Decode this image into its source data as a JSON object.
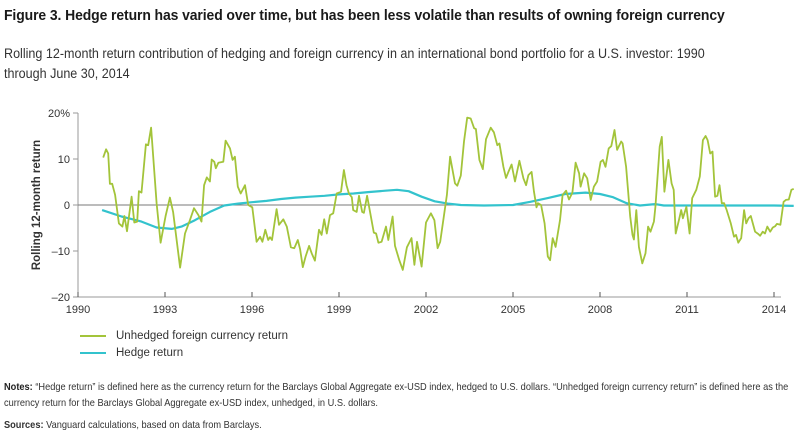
{
  "figure": {
    "title": "Figure 3. Hedge return has varied over time, but has been less volatile than results of owning foreign currency",
    "subtitle": "Rolling 12-month return contribution of hedging and foreign currency in an international bond portfolio for a U.S. investor: 1990 through June 30, 2014",
    "notes_label": "Notes:",
    "notes_text": " “Hedge return” is defined here as the currency return for the Barclays Global Aggregate ex-USD index, hedged to U.S. dollars. “Unhedged foreign currency return” is defined here as the currency return for the Barclays Global Aggregate ex-USD index, unhedged, in U.S. dollars.",
    "sources_label": "Sources:",
    "sources_text": " Vanguard calculations, based on data from Barclays."
  },
  "colors": {
    "unhedged": "#a3c43a",
    "hedge": "#33c3cd",
    "axis": "#9a9a9a",
    "zero_line": "#7a7a7a"
  },
  "chart_data": {
    "type": "line",
    "title": "Figure 3. Hedge return has varied over time, but has been less volatile than results of owning foreign currency",
    "xlabel": "",
    "ylabel": "Rolling 12-month return",
    "xlim": [
      1990,
      2014.2
    ],
    "ylim": [
      -20,
      20
    ],
    "x_ticks": [
      1990,
      1993,
      1996,
      1999,
      2002,
      2005,
      2008,
      2011,
      2014
    ],
    "x_tick_labels": [
      "1990",
      "1993",
      "1996",
      "1999",
      "2002",
      "2005",
      "2008",
      "2011",
      "2014"
    ],
    "y_ticks": [
      20,
      10,
      0,
      -10,
      -20
    ],
    "y_tick_labels": [
      "20%",
      "10",
      "0",
      "–10",
      "–20"
    ],
    "grid": false,
    "zero_line": true,
    "legend_position": "bottom-left",
    "series": [
      {
        "name": "Unhedged foreign currency return",
        "color_key": "unhedged",
        "points": [
          [
            1990.87,
            10.3
          ],
          [
            1990.97,
            12.1
          ],
          [
            1991.04,
            11.2
          ],
          [
            1991.1,
            4.6
          ],
          [
            1991.18,
            4.6
          ],
          [
            1991.28,
            2.2
          ],
          [
            1991.41,
            -4.0
          ],
          [
            1991.53,
            -4.7
          ],
          [
            1991.6,
            -2.4
          ],
          [
            1991.69,
            -5.7
          ],
          [
            1991.85,
            1.8
          ],
          [
            1991.94,
            -3.8
          ],
          [
            1992.04,
            -3.6
          ],
          [
            1992.1,
            3.0
          ],
          [
            1992.19,
            2.7
          ],
          [
            1992.34,
            13.2
          ],
          [
            1992.42,
            13.0
          ],
          [
            1992.52,
            16.8
          ],
          [
            1992.71,
            0.4
          ],
          [
            1992.85,
            -8.2
          ],
          [
            1993.02,
            -2.4
          ],
          [
            1993.17,
            1.6
          ],
          [
            1993.28,
            -1.5
          ],
          [
            1993.52,
            -13.6
          ],
          [
            1993.69,
            -6.2
          ],
          [
            1993.86,
            -3.3
          ],
          [
            1994.0,
            -0.7
          ],
          [
            1994.15,
            -2.2
          ],
          [
            1994.26,
            -3.6
          ],
          [
            1994.35,
            4.3
          ],
          [
            1994.44,
            6.0
          ],
          [
            1994.55,
            5.1
          ],
          [
            1994.61,
            9.9
          ],
          [
            1994.7,
            9.4
          ],
          [
            1994.75,
            8.0
          ],
          [
            1994.84,
            9.2
          ],
          [
            1995.01,
            9.4
          ],
          [
            1995.09,
            14.0
          ],
          [
            1995.24,
            12.3
          ],
          [
            1995.33,
            9.8
          ],
          [
            1995.41,
            10.5
          ],
          [
            1995.51,
            4.0
          ],
          [
            1995.61,
            2.5
          ],
          [
            1995.76,
            4.3
          ],
          [
            1995.87,
            0.0
          ],
          [
            1996.01,
            -0.5
          ],
          [
            1996.16,
            -8.0
          ],
          [
            1996.28,
            -6.9
          ],
          [
            1996.36,
            -8.0
          ],
          [
            1996.46,
            -5.4
          ],
          [
            1996.56,
            -7.6
          ],
          [
            1996.62,
            -7.0
          ],
          [
            1996.69,
            -7.6
          ],
          [
            1996.85,
            -0.9
          ],
          [
            1996.93,
            -4.3
          ],
          [
            1997.08,
            -3.1
          ],
          [
            1997.2,
            -4.7
          ],
          [
            1997.34,
            -9.2
          ],
          [
            1997.46,
            -9.4
          ],
          [
            1997.58,
            -7.6
          ],
          [
            1997.66,
            -9.6
          ],
          [
            1997.75,
            -13.5
          ],
          [
            1997.85,
            -11.2
          ],
          [
            1997.97,
            -8.9
          ],
          [
            1998.06,
            -10.5
          ],
          [
            1998.17,
            -12.1
          ],
          [
            1998.31,
            -5.4
          ],
          [
            1998.4,
            -6.5
          ],
          [
            1998.49,
            -3.1
          ],
          [
            1998.58,
            -6.2
          ],
          [
            1998.69,
            -2.2
          ],
          [
            1998.8,
            -1.8
          ],
          [
            1998.92,
            2.5
          ],
          [
            1999.0,
            2.7
          ],
          [
            1999.07,
            2.9
          ],
          [
            1999.17,
            7.6
          ],
          [
            1999.26,
            4.3
          ],
          [
            1999.34,
            2.5
          ],
          [
            1999.44,
            1.7
          ],
          [
            1999.49,
            -1.1
          ],
          [
            1999.61,
            -1.5
          ],
          [
            1999.69,
            2.0
          ],
          [
            1999.8,
            -1.5
          ],
          [
            1999.86,
            -1.7
          ],
          [
            1999.97,
            2.0
          ],
          [
            2000.08,
            -1.8
          ],
          [
            2000.2,
            -6.0
          ],
          [
            2000.28,
            -6.2
          ],
          [
            2000.36,
            -8.2
          ],
          [
            2000.47,
            -8.0
          ],
          [
            2000.62,
            -4.7
          ],
          [
            2000.7,
            -7.6
          ],
          [
            2000.85,
            -2.5
          ],
          [
            2000.93,
            -8.9
          ],
          [
            2001.08,
            -12.0
          ],
          [
            2001.2,
            -14.1
          ],
          [
            2001.34,
            -9.2
          ],
          [
            2001.5,
            -7.2
          ],
          [
            2001.6,
            -13.0
          ],
          [
            2001.69,
            -8.0
          ],
          [
            2001.85,
            -13.4
          ],
          [
            2002.0,
            -3.8
          ],
          [
            2002.17,
            -1.8
          ],
          [
            2002.29,
            -3.3
          ],
          [
            2002.4,
            -9.4
          ],
          [
            2002.49,
            -8.0
          ],
          [
            2002.61,
            -2.7
          ],
          [
            2002.72,
            2.2
          ],
          [
            2002.83,
            10.5
          ],
          [
            2003.0,
            4.7
          ],
          [
            2003.08,
            4.2
          ],
          [
            2003.2,
            6.4
          ],
          [
            2003.31,
            13.8
          ],
          [
            2003.42,
            19.0
          ],
          [
            2003.54,
            18.8
          ],
          [
            2003.66,
            16.7
          ],
          [
            2003.72,
            16.5
          ],
          [
            2003.84,
            9.8
          ],
          [
            2003.96,
            7.8
          ],
          [
            2004.07,
            14.3
          ],
          [
            2004.23,
            16.8
          ],
          [
            2004.34,
            15.8
          ],
          [
            2004.46,
            13.0
          ],
          [
            2004.53,
            13.4
          ],
          [
            2004.67,
            8.3
          ],
          [
            2004.76,
            5.9
          ],
          [
            2004.84,
            7.2
          ],
          [
            2004.95,
            8.8
          ],
          [
            2005.07,
            5.1
          ],
          [
            2005.22,
            9.6
          ],
          [
            2005.36,
            5.8
          ],
          [
            2005.45,
            4.3
          ],
          [
            2005.53,
            6.5
          ],
          [
            2005.64,
            7.2
          ],
          [
            2005.72,
            3.0
          ],
          [
            2005.81,
            -0.5
          ],
          [
            2005.86,
            0.4
          ],
          [
            2005.97,
            0.0
          ],
          [
            2006.09,
            -4.0
          ],
          [
            2006.2,
            -11.2
          ],
          [
            2006.28,
            -12.0
          ],
          [
            2006.37,
            -7.2
          ],
          [
            2006.47,
            -9.1
          ],
          [
            2006.62,
            -3.3
          ],
          [
            2006.71,
            2.2
          ],
          [
            2006.83,
            3.1
          ],
          [
            2006.93,
            1.2
          ],
          [
            2007.05,
            2.7
          ],
          [
            2007.16,
            9.2
          ],
          [
            2007.28,
            6.9
          ],
          [
            2007.33,
            4.0
          ],
          [
            2007.45,
            6.9
          ],
          [
            2007.56,
            5.8
          ],
          [
            2007.68,
            1.1
          ],
          [
            2007.79,
            4.0
          ],
          [
            2007.9,
            5.1
          ],
          [
            2008.02,
            9.4
          ],
          [
            2008.1,
            9.8
          ],
          [
            2008.19,
            8.3
          ],
          [
            2008.3,
            12.3
          ],
          [
            2008.39,
            12.8
          ],
          [
            2008.5,
            16.3
          ],
          [
            2008.59,
            12.0
          ],
          [
            2008.73,
            13.8
          ],
          [
            2008.78,
            13.4
          ],
          [
            2008.9,
            8.3
          ],
          [
            2009.04,
            -2.5
          ],
          [
            2009.12,
            -6.5
          ],
          [
            2009.17,
            -7.5
          ],
          [
            2009.25,
            -1.1
          ],
          [
            2009.34,
            -9.1
          ],
          [
            2009.46,
            -12.7
          ],
          [
            2009.57,
            -10.5
          ],
          [
            2009.66,
            -4.7
          ],
          [
            2009.74,
            -5.8
          ],
          [
            2009.86,
            -3.6
          ],
          [
            2009.91,
            -0.4
          ],
          [
            2010.06,
            12.7
          ],
          [
            2010.13,
            14.8
          ],
          [
            2010.22,
            2.9
          ],
          [
            2010.36,
            9.8
          ],
          [
            2010.47,
            4.7
          ],
          [
            2010.54,
            3.3
          ],
          [
            2010.61,
            -6.2
          ],
          [
            2010.72,
            -3.3
          ],
          [
            2010.8,
            -1.1
          ],
          [
            2010.86,
            -2.9
          ],
          [
            2010.98,
            -0.4
          ],
          [
            2011.09,
            -6.2
          ],
          [
            2011.18,
            1.5
          ],
          [
            2011.32,
            3.3
          ],
          [
            2011.44,
            6.2
          ],
          [
            2011.55,
            14.1
          ],
          [
            2011.64,
            15.0
          ],
          [
            2011.71,
            14.1
          ],
          [
            2011.8,
            11.2
          ],
          [
            2011.88,
            11.6
          ],
          [
            2011.97,
            1.8
          ],
          [
            2012.05,
            2.0
          ],
          [
            2012.12,
            4.3
          ],
          [
            2012.2,
            0.4
          ],
          [
            2012.28,
            0.4
          ],
          [
            2012.37,
            -1.1
          ],
          [
            2012.51,
            -4.0
          ],
          [
            2012.62,
            -6.9
          ],
          [
            2012.69,
            -6.5
          ],
          [
            2012.77,
            -8.2
          ],
          [
            2012.87,
            -7.2
          ],
          [
            2012.97,
            -1.1
          ],
          [
            2013.04,
            -4.0
          ],
          [
            2013.12,
            -2.9
          ],
          [
            2013.2,
            -2.4
          ],
          [
            2013.35,
            -5.8
          ],
          [
            2013.46,
            -6.3
          ],
          [
            2013.52,
            -6.7
          ],
          [
            2013.61,
            -5.8
          ],
          [
            2013.69,
            -6.2
          ],
          [
            2013.77,
            -4.7
          ],
          [
            2013.87,
            -5.8
          ],
          [
            2013.96,
            -4.9
          ],
          [
            2014.04,
            -4.6
          ],
          [
            2014.1,
            -4.1
          ],
          [
            2014.22,
            -4.3
          ],
          [
            2014.33,
            0.7
          ],
          [
            2014.41,
            1.1
          ],
          [
            2014.51,
            1.2
          ],
          [
            2014.6,
            3.3
          ],
          [
            2014.68,
            3.5
          ]
        ]
      },
      {
        "name": "Hedge return",
        "color_key": "hedge",
        "points": [
          [
            1990.83,
            -1.1
          ],
          [
            1991.5,
            -2.5
          ],
          [
            1992.19,
            -3.6
          ],
          [
            1992.71,
            -4.9
          ],
          [
            1993.23,
            -5.2
          ],
          [
            1993.57,
            -4.7
          ],
          [
            1994.03,
            -3.3
          ],
          [
            1994.55,
            -1.5
          ],
          [
            1995.04,
            -0.1
          ],
          [
            1995.52,
            0.3
          ],
          [
            1996.0,
            0.6
          ],
          [
            1996.5,
            0.9
          ],
          [
            1997.0,
            1.3
          ],
          [
            1997.5,
            1.6
          ],
          [
            1998.0,
            1.8
          ],
          [
            1998.5,
            2.0
          ],
          [
            1999.0,
            2.3
          ],
          [
            1999.5,
            2.5
          ],
          [
            2000.0,
            2.8
          ],
          [
            2000.6,
            3.1
          ],
          [
            2001.0,
            3.3
          ],
          [
            2001.4,
            3.0
          ],
          [
            2001.85,
            1.8
          ],
          [
            2002.3,
            0.8
          ],
          [
            2002.75,
            0.3
          ],
          [
            2003.2,
            0.0
          ],
          [
            2004.0,
            -0.1
          ],
          [
            2005.0,
            0.0
          ],
          [
            2005.6,
            0.7
          ],
          [
            2006.2,
            1.5
          ],
          [
            2006.8,
            2.4
          ],
          [
            2007.5,
            2.7
          ],
          [
            2008.0,
            2.4
          ],
          [
            2008.45,
            1.7
          ],
          [
            2008.92,
            0.4
          ],
          [
            2009.38,
            -0.1
          ],
          [
            2009.9,
            0.2
          ],
          [
            2010.2,
            -0.1
          ],
          [
            2011.0,
            -0.1
          ],
          [
            2012.0,
            -0.1
          ],
          [
            2013.0,
            -0.1
          ],
          [
            2014.0,
            -0.1
          ],
          [
            2014.68,
            -0.2
          ]
        ]
      }
    ]
  }
}
